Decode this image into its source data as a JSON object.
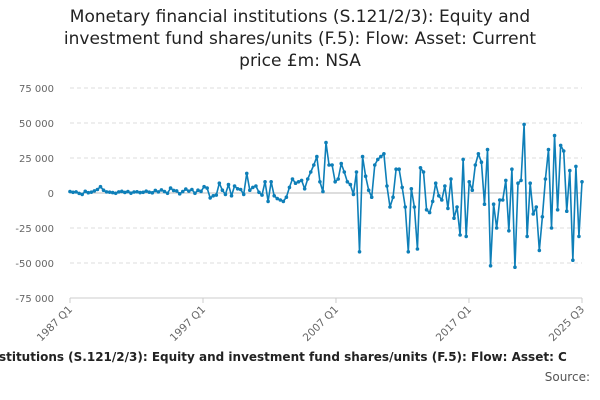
{
  "chart_data": {
    "type": "line",
    "title_lines": [
      "Monetary financial institutions (S.121/2/3): Equity and",
      "investment fund shares/units (F.5): Flow: Asset: Current",
      "price £m: NSA"
    ],
    "footer_title": "l institutions (S.121/2/3): Equity and investment fund shares/units (F.5): Flow: Asset: C",
    "source_label": "Source:",
    "y_ticks": [
      "75 000",
      "50 000",
      "25 000",
      "0",
      "-25 000",
      "-50 000",
      "-75 000"
    ],
    "x_tick_labels": [
      "1987 Q1",
      "1997 Q1",
      "2007 Q1",
      "2017 Q1",
      "2025 Q3"
    ],
    "ylim": [
      -75000,
      75000
    ],
    "x_range": [
      "1987 Q1",
      "2025 Q3"
    ],
    "grid": "horizontal",
    "line_color": "#0e7fb8",
    "zero_line_color": "#bbbbbb",
    "series": [
      {
        "values": [
          1000,
          500,
          800,
          -300,
          -1000,
          1200,
          200,
          600,
          1500,
          2500,
          4500,
          2000,
          800,
          600,
          300,
          -200,
          800,
          1200,
          400,
          1000,
          -100,
          700,
          900,
          300,
          500,
          1300,
          600,
          100,
          1800,
          800,
          2200,
          1000,
          -200,
          3500,
          1800,
          1500,
          -600,
          1000,
          2800,
          1300,
          2500,
          -200,
          2000,
          1200,
          4500,
          3500,
          -3500,
          -2000,
          -1500,
          7000,
          2000,
          -1000,
          6000,
          -2000,
          5000,
          3000,
          2500,
          -1000,
          14000,
          2000,
          4000,
          5000,
          500,
          -1500,
          8000,
          -6000,
          8000,
          -2000,
          -4000,
          -5000,
          -6000,
          -3000,
          4000,
          10000,
          7000,
          8000,
          9000,
          3000,
          10000,
          15000,
          20000,
          26000,
          8000,
          1000,
          36000,
          20000,
          20000,
          8000,
          10000,
          21000,
          15000,
          8000,
          6000,
          -1000,
          15000,
          -42000,
          26000,
          12000,
          2000,
          -3000,
          20000,
          24000,
          26000,
          28000,
          5000,
          -10000,
          -3000,
          17000,
          17000,
          4000,
          -10000,
          -42000,
          3000,
          -10000,
          -40000,
          18000,
          15000,
          -12000,
          -14000,
          -6000,
          7000,
          -2000,
          -5000,
          5000,
          -11000,
          10000,
          -18000,
          -10000,
          -30000,
          24000,
          -31000,
          8000,
          2000,
          20000,
          28000,
          22000,
          -8000,
          31000,
          -52000,
          -8000,
          -25000,
          -5000,
          -5000,
          9000,
          -27000,
          17000,
          -53000,
          7000,
          9000,
          49000,
          -31000,
          7000,
          -15000,
          -10000,
          -41000,
          -17000,
          10000,
          31000,
          -25000,
          41000,
          -12000,
          34000,
          30000,
          -13000,
          16000,
          -48000,
          19000,
          -31000,
          8000
        ]
      }
    ]
  }
}
